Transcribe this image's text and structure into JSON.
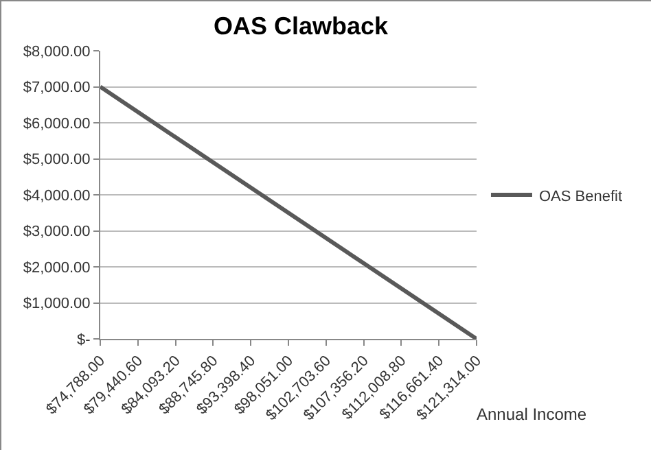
{
  "chart_data": {
    "type": "line",
    "title": "OAS Clawback",
    "xlabel": "Annual Income",
    "categories": [
      "$74,788.00",
      "$79,440.60",
      "$84,093.20",
      "$88,745.80",
      "$93,398.40",
      "$98,051.00",
      "$102,703.60",
      "$107,356.20",
      "$112,008.80",
      "$116,661.40",
      "$121,314.00"
    ],
    "series": [
      {
        "name": "OAS Benefit",
        "color": "#595959",
        "values": [
          7000,
          6300,
          5600,
          4900,
          4200,
          3500,
          2800,
          2100,
          1400,
          700,
          0
        ]
      }
    ],
    "ylim": [
      0,
      8000
    ],
    "yticks": [
      {
        "value": 0,
        "label": "$-"
      },
      {
        "value": 1000,
        "label": "$1,000.00"
      },
      {
        "value": 2000,
        "label": "$2,000.00"
      },
      {
        "value": 3000,
        "label": "$3,000.00"
      },
      {
        "value": 4000,
        "label": "$4,000.00"
      },
      {
        "value": 5000,
        "label": "$5,000.00"
      },
      {
        "value": 6000,
        "label": "$6,000.00"
      },
      {
        "value": 7000,
        "label": "$7,000.00"
      },
      {
        "value": 8000,
        "label": "$8,000.00"
      }
    ],
    "grid": "y",
    "legend": "right",
    "marker": "none",
    "line_style": "solid"
  }
}
